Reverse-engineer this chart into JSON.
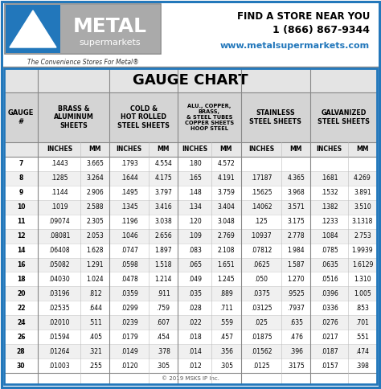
{
  "title": "GAUGE CHART",
  "sub_headers": [
    "",
    "INCHES",
    "MM",
    "INCHES",
    "MM",
    "INCHES",
    "MM",
    "INCHES",
    "MM",
    "INCHES",
    "MM"
  ],
  "rows": [
    [
      "7",
      ".1443",
      "3.665",
      ".1793",
      "4.554",
      ".180",
      "4.572",
      "",
      "",
      "",
      ""
    ],
    [
      "8",
      ".1285",
      "3.264",
      ".1644",
      "4.175",
      ".165",
      "4.191",
      ".17187",
      "4.365",
      ".1681",
      "4.269"
    ],
    [
      "9",
      ".1144",
      "2.906",
      ".1495",
      "3.797",
      ".148",
      "3.759",
      ".15625",
      "3.968",
      ".1532",
      "3.891"
    ],
    [
      "10",
      ".1019",
      "2.588",
      ".1345",
      "3.416",
      ".134",
      "3.404",
      ".14062",
      "3.571",
      ".1382",
      "3.510"
    ],
    [
      "11",
      ".09074",
      "2.305",
      ".1196",
      "3.038",
      ".120",
      "3.048",
      ".125",
      "3.175",
      ".1233",
      "3.1318"
    ],
    [
      "12",
      ".08081",
      "2.053",
      ".1046",
      "2.656",
      ".109",
      "2.769",
      ".10937",
      "2.778",
      ".1084",
      "2.753"
    ],
    [
      "14",
      ".06408",
      "1.628",
      ".0747",
      "1.897",
      ".083",
      "2.108",
      ".07812",
      "1.984",
      ".0785",
      "1.9939"
    ],
    [
      "16",
      ".05082",
      "1.291",
      ".0598",
      "1.518",
      ".065",
      "1.651",
      ".0625",
      "1.587",
      ".0635",
      "1.6129"
    ],
    [
      "18",
      ".04030",
      "1.024",
      ".0478",
      "1.214",
      ".049",
      "1.245",
      ".050",
      "1.270",
      ".0516",
      "1.310"
    ],
    [
      "20",
      ".03196",
      ".812",
      ".0359",
      ".911",
      ".035",
      ".889",
      ".0375",
      ".9525",
      ".0396",
      "1.005"
    ],
    [
      "22",
      ".02535",
      ".644",
      ".0299",
      ".759",
      ".028",
      ".711",
      ".03125",
      ".7937",
      ".0336",
      ".853"
    ],
    [
      "24",
      ".02010",
      ".511",
      ".0239",
      ".607",
      ".022",
      ".559",
      ".025",
      ".635",
      ".0276",
      ".701"
    ],
    [
      "26",
      ".01594",
      ".405",
      ".0179",
      ".454",
      ".018",
      ".457",
      ".01875",
      ".476",
      ".0217",
      ".551"
    ],
    [
      "28",
      ".01264",
      ".321",
      ".0149",
      ".378",
      ".014",
      ".356",
      ".01562",
      ".396",
      ".0187",
      ".474"
    ],
    [
      "30",
      ".01003",
      ".255",
      ".0120",
      ".305",
      ".012",
      ".305",
      ".0125",
      ".3175",
      ".0157",
      ".398"
    ]
  ],
  "footer": "© 2019 MSKS IP Inc.",
  "header_bg": "#d4d4d4",
  "subheader_bg": "#e8e8e8",
  "row_bg_even": "#ffffff",
  "row_bg_odd": "#f0f0f0",
  "border_color": "#aaaaaa",
  "title_bg": "#e4e4e4",
  "logo_gray_bg": "#999999",
  "logo_text1": "METAL",
  "logo_text2": "supermarkets",
  "logo_tagline": "The Convenience Stores For Metal®",
  "contact_line1": "FIND A STORE NEAR YOU",
  "contact_line2": "1 (866) 867-9344",
  "contact_line3": "www.metalsupermarkets.com",
  "blue_accent": "#2277bb",
  "outer_bg": "#f8f8f8"
}
